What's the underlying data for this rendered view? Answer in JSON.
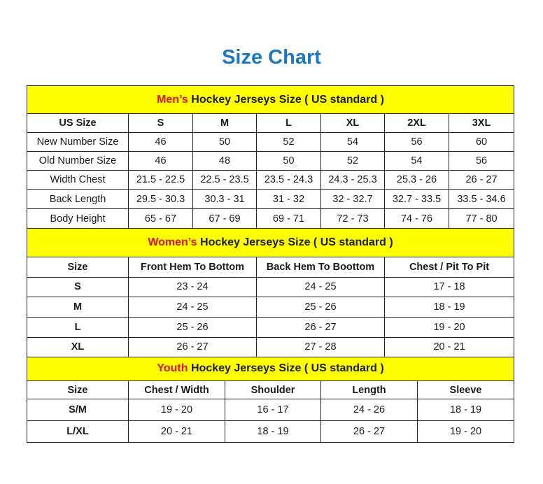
{
  "title": "Size Chart",
  "sections": [
    {
      "key": "men",
      "header_highlight": "Men’s",
      "header_rest": " Hockey Jerseys Size ( US standard )",
      "columns": [
        "US Size",
        "S",
        "M",
        "L",
        "XL",
        "2XL",
        "3XL"
      ],
      "rows": [
        [
          "New Number Size",
          "46",
          "50",
          "52",
          "54",
          "56",
          "60"
        ],
        [
          "Old Number Size",
          "46",
          "48",
          "50",
          "52",
          "54",
          "56"
        ],
        [
          "Width Chest",
          "21.5 - 22.5",
          "22.5 - 23.5",
          "23.5 - 24.3",
          "24.3 - 25.3",
          "25.3 - 26",
          "26 - 27"
        ],
        [
          "Back Length",
          "29.5 - 30.3",
          "30.3 - 31",
          "31 - 32",
          "32 - 32.7",
          "32.7 - 33.5",
          "33.5 - 34.6"
        ],
        [
          "Body Height",
          "65 - 67",
          "67 - 69",
          "69 - 71",
          "72 - 73",
          "74 - 76",
          "77 - 80"
        ]
      ]
    },
    {
      "key": "women",
      "header_highlight": "Women’s",
      "header_rest": " Hockey Jerseys Size ( US standard )",
      "columns": [
        "Size",
        "Front Hem To Bottom",
        "Back Hem To Boottom",
        "Chest / Pit To Pit"
      ],
      "rows": [
        [
          "S",
          "23 - 24",
          "24 - 25",
          "17 - 18"
        ],
        [
          "M",
          "24 - 25",
          "25 - 26",
          "18 - 19"
        ],
        [
          "L",
          "25 - 26",
          "26 - 27",
          "19 - 20"
        ],
        [
          "XL",
          "26 - 27",
          "27 - 28",
          "20 - 21"
        ]
      ]
    },
    {
      "key": "youth",
      "header_highlight": "Youth",
      "header_rest": " Hockey Jerseys Size ( US standard )",
      "columns": [
        "Size",
        "Chest / Width",
        "Shoulder",
        "Length",
        "Sleeve"
      ],
      "rows": [
        [
          "S/M",
          "19 - 20",
          "16 - 17",
          "24 - 26",
          "18 - 19"
        ],
        [
          "L/XL",
          "20 - 21",
          "18 - 19",
          "26 - 27",
          "19 - 20"
        ]
      ]
    }
  ],
  "colors": {
    "title": "#1f77c0",
    "header_bg": "#ffff00",
    "highlight": "#e01010"
  }
}
